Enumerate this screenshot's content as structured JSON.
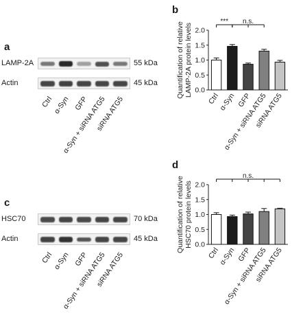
{
  "panels": {
    "a": "a",
    "b": "b",
    "c": "c",
    "d": "d"
  },
  "lanes": [
    "Ctrl",
    "α-Syn",
    "GFP",
    "α-Syn + siRNA ATG5",
    "siRNA ATG5"
  ],
  "blot_a": {
    "rows": [
      {
        "label": "LAMP-2A",
        "kda": "55 kDa",
        "intensity": [
          0.55,
          0.95,
          0.35,
          0.75,
          0.55
        ]
      },
      {
        "label": "Actin",
        "kda": "45 kDa",
        "intensity": [
          0.8,
          0.82,
          0.8,
          0.8,
          0.8
        ]
      }
    ]
  },
  "blot_c": {
    "rows": [
      {
        "label": "HSC70",
        "kda": "70 kDa",
        "intensity": [
          0.78,
          0.8,
          0.78,
          0.8,
          0.8
        ]
      },
      {
        "label": "Actin",
        "kda": "45 kDa",
        "intensity": [
          0.82,
          0.9,
          0.72,
          0.8,
          0.8
        ]
      }
    ]
  },
  "colors": {
    "bars": [
      "#ffffff",
      "#1c1c1c",
      "#444444",
      "#808080",
      "#c4c4c4"
    ],
    "axis": "#222222"
  },
  "chart_data": [
    {
      "type": "bar",
      "ylabel": "Quantification of relative LAMP-2A protein levels",
      "ylabel_lines": [
        "Quantification of relative",
        "LAMP-2A protein levels"
      ],
      "categories": [
        "Ctrl",
        "α-Syn",
        "GFP",
        "α-Syn + siRNA ATG5",
        "siRNA ATG5"
      ],
      "values": [
        1.0,
        1.46,
        0.86,
        1.3,
        0.93
      ],
      "errors": [
        0.07,
        0.06,
        0.04,
        0.06,
        0.06
      ],
      "ylim": [
        0,
        2.0
      ],
      "yticks": [
        "0.0",
        "0.5",
        "1.0",
        "1.5",
        "2.0"
      ],
      "annotations": [
        {
          "text": "***",
          "from": 0,
          "to": 1
        },
        {
          "text": "n.s.",
          "from": 1,
          "to": 3
        }
      ]
    },
    {
      "type": "bar",
      "ylabel": "Quantification of relative HSC70 protein levels",
      "ylabel_lines": [
        "Quantification of relative",
        "HSC70 protein levels"
      ],
      "categories": [
        "Ctrl",
        "α-Syn",
        "GFP",
        "α-Syn + siRNA ATG5",
        "siRNA ATG5"
      ],
      "values": [
        1.0,
        0.93,
        1.02,
        1.1,
        1.19
      ],
      "errors": [
        0.06,
        0.05,
        0.06,
        0.1,
        0.02
      ],
      "ylim": [
        0,
        2.0
      ],
      "yticks": [
        "0.0",
        "0.5",
        "1.0",
        "1.5",
        "2.0"
      ],
      "annotations": [
        {
          "text": "n.s.",
          "from": 0,
          "to": 4
        }
      ]
    }
  ]
}
